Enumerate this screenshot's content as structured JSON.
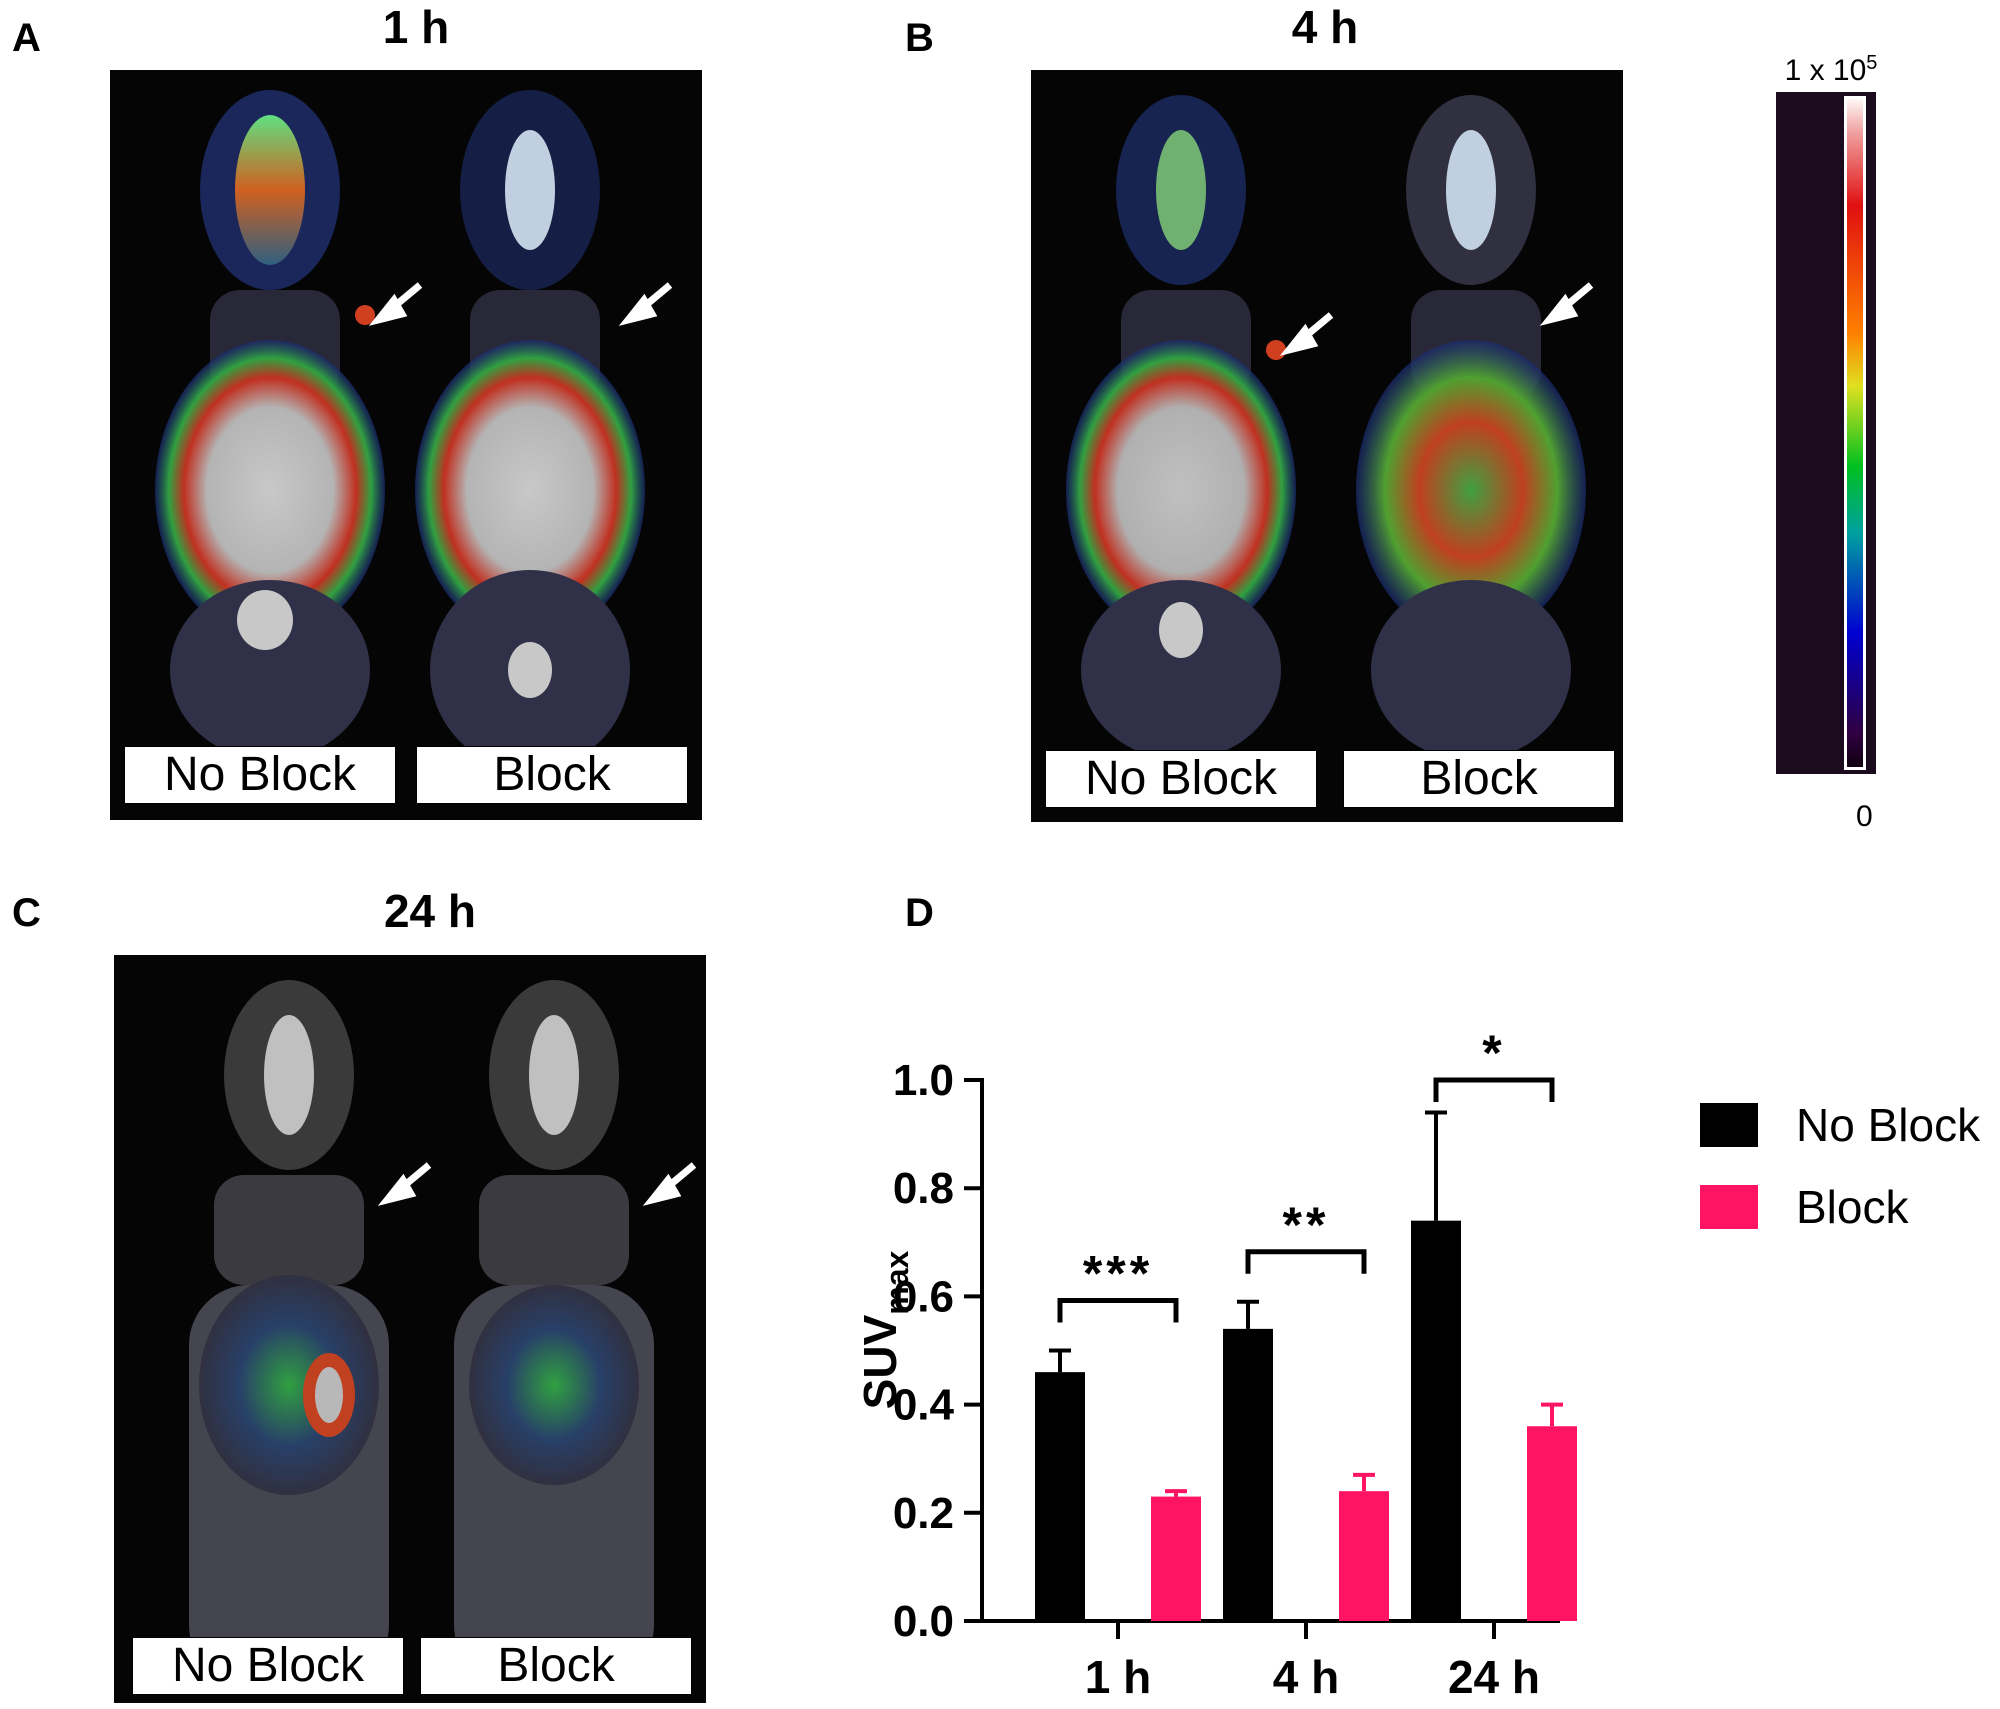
{
  "figure": {
    "panels": {
      "a": {
        "letter": "A",
        "title": "1 h",
        "captions": [
          "No Block",
          "Block"
        ]
      },
      "b": {
        "letter": "B",
        "title": "4 h",
        "captions": [
          "No Block",
          "Block"
        ]
      },
      "c": {
        "letter": "C",
        "title": "24 h",
        "captions": [
          "No Block",
          "Block"
        ]
      },
      "d": {
        "letter": "D"
      }
    },
    "colorbar": {
      "max_label_base": "1 x 10",
      "max_label_exp": "5",
      "min_label": "0"
    }
  },
  "chart_data": {
    "type": "bar",
    "categories": [
      "1 h",
      "4 h",
      "24 h"
    ],
    "ylabel_main": "SUV",
    "ylabel_sub": "max",
    "ylim": [
      0,
      1.0
    ],
    "yticks": [
      "0.0",
      "0.2",
      "0.4",
      "0.6",
      "0.8",
      "1.0"
    ],
    "series": [
      {
        "name": "No Block",
        "color": "#000000",
        "values": [
          0.46,
          0.54,
          0.74
        ],
        "errors": [
          0.04,
          0.05,
          0.2
        ]
      },
      {
        "name": "Block",
        "color": "#ff1464",
        "values": [
          0.23,
          0.24,
          0.36
        ],
        "errors": [
          0.01,
          0.03,
          0.04
        ]
      }
    ],
    "significance": [
      "***",
      "**",
      "*"
    ],
    "legend_position": "right"
  }
}
